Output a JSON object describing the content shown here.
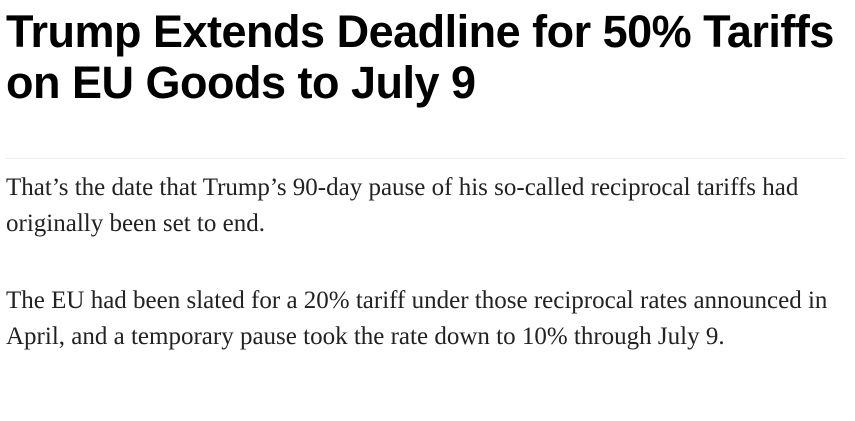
{
  "article": {
    "headline": "Trump Extends Deadline for 50% Tariffs on EU Goods to July 9",
    "paragraphs": [
      "That’s the date that Trump’s 90-day pause of his so-called reciprocal tariffs had originally been set to end.",
      "The EU had been slated for a 20% tariff under those reciprocal rates announced in April, and a temporary pause took the rate down to 10% through July 9."
    ]
  }
}
